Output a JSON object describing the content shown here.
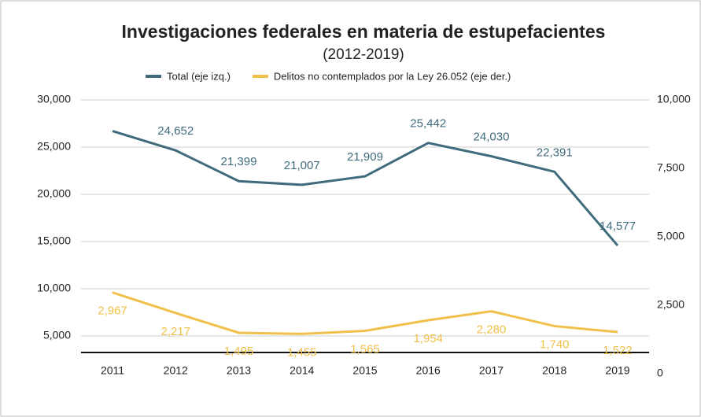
{
  "chart_data": {
    "type": "line",
    "title": "Investigaciones federales en materia de estupefacientes",
    "subtitle": "(2012-2019)",
    "categories": [
      "2011",
      "2012",
      "2013",
      "2014",
      "2015",
      "2016",
      "2017",
      "2018",
      "2019"
    ],
    "series": [
      {
        "name": "Total (eje izq.)",
        "color": "#3f6b7c",
        "values": [
          26700,
          24652,
          21399,
          21007,
          21909,
          25442,
          24030,
          22391,
          14577
        ],
        "value_labels": [
          null,
          "24,652",
          "21,399",
          "21,007",
          "21,909",
          "25,442",
          "24,030",
          "22,391",
          "14,577"
        ]
      },
      {
        "name": "Delitos no contemplados por la Ley 26.052 (eje der.)",
        "color": "#f0c04a",
        "axis": "y2",
        "values": [
          2967,
          2217,
          1495,
          1455,
          1565,
          1954,
          2280,
          1740,
          1522
        ],
        "value_labels": [
          "2,967",
          "2,217",
          "1,495",
          "1,455",
          "1,565",
          "1,954",
          "2,280",
          "1,740",
          "1,522"
        ]
      }
    ],
    "ylim": [
      1000,
      30000
    ],
    "yticks": [
      {
        "value": 5000,
        "label": "5,000"
      },
      {
        "value": 10000,
        "label": "10,000"
      },
      {
        "value": 15000,
        "label": "15,000"
      },
      {
        "value": 20000,
        "label": "20,000"
      },
      {
        "value": 25000,
        "label": "25,000"
      },
      {
        "value": 30000,
        "label": "30,000"
      }
    ],
    "y2lim": [
      0,
      10000
    ],
    "y2ticks": [
      0,
      {
        "value": 2500,
        "label": "2,500"
      },
      {
        "value": 5000,
        "label": "5,000"
      },
      {
        "value": 7500,
        "label": "7,500"
      },
      {
        "value": 10000,
        "label": "10,000"
      }
    ],
    "grid": true
  }
}
